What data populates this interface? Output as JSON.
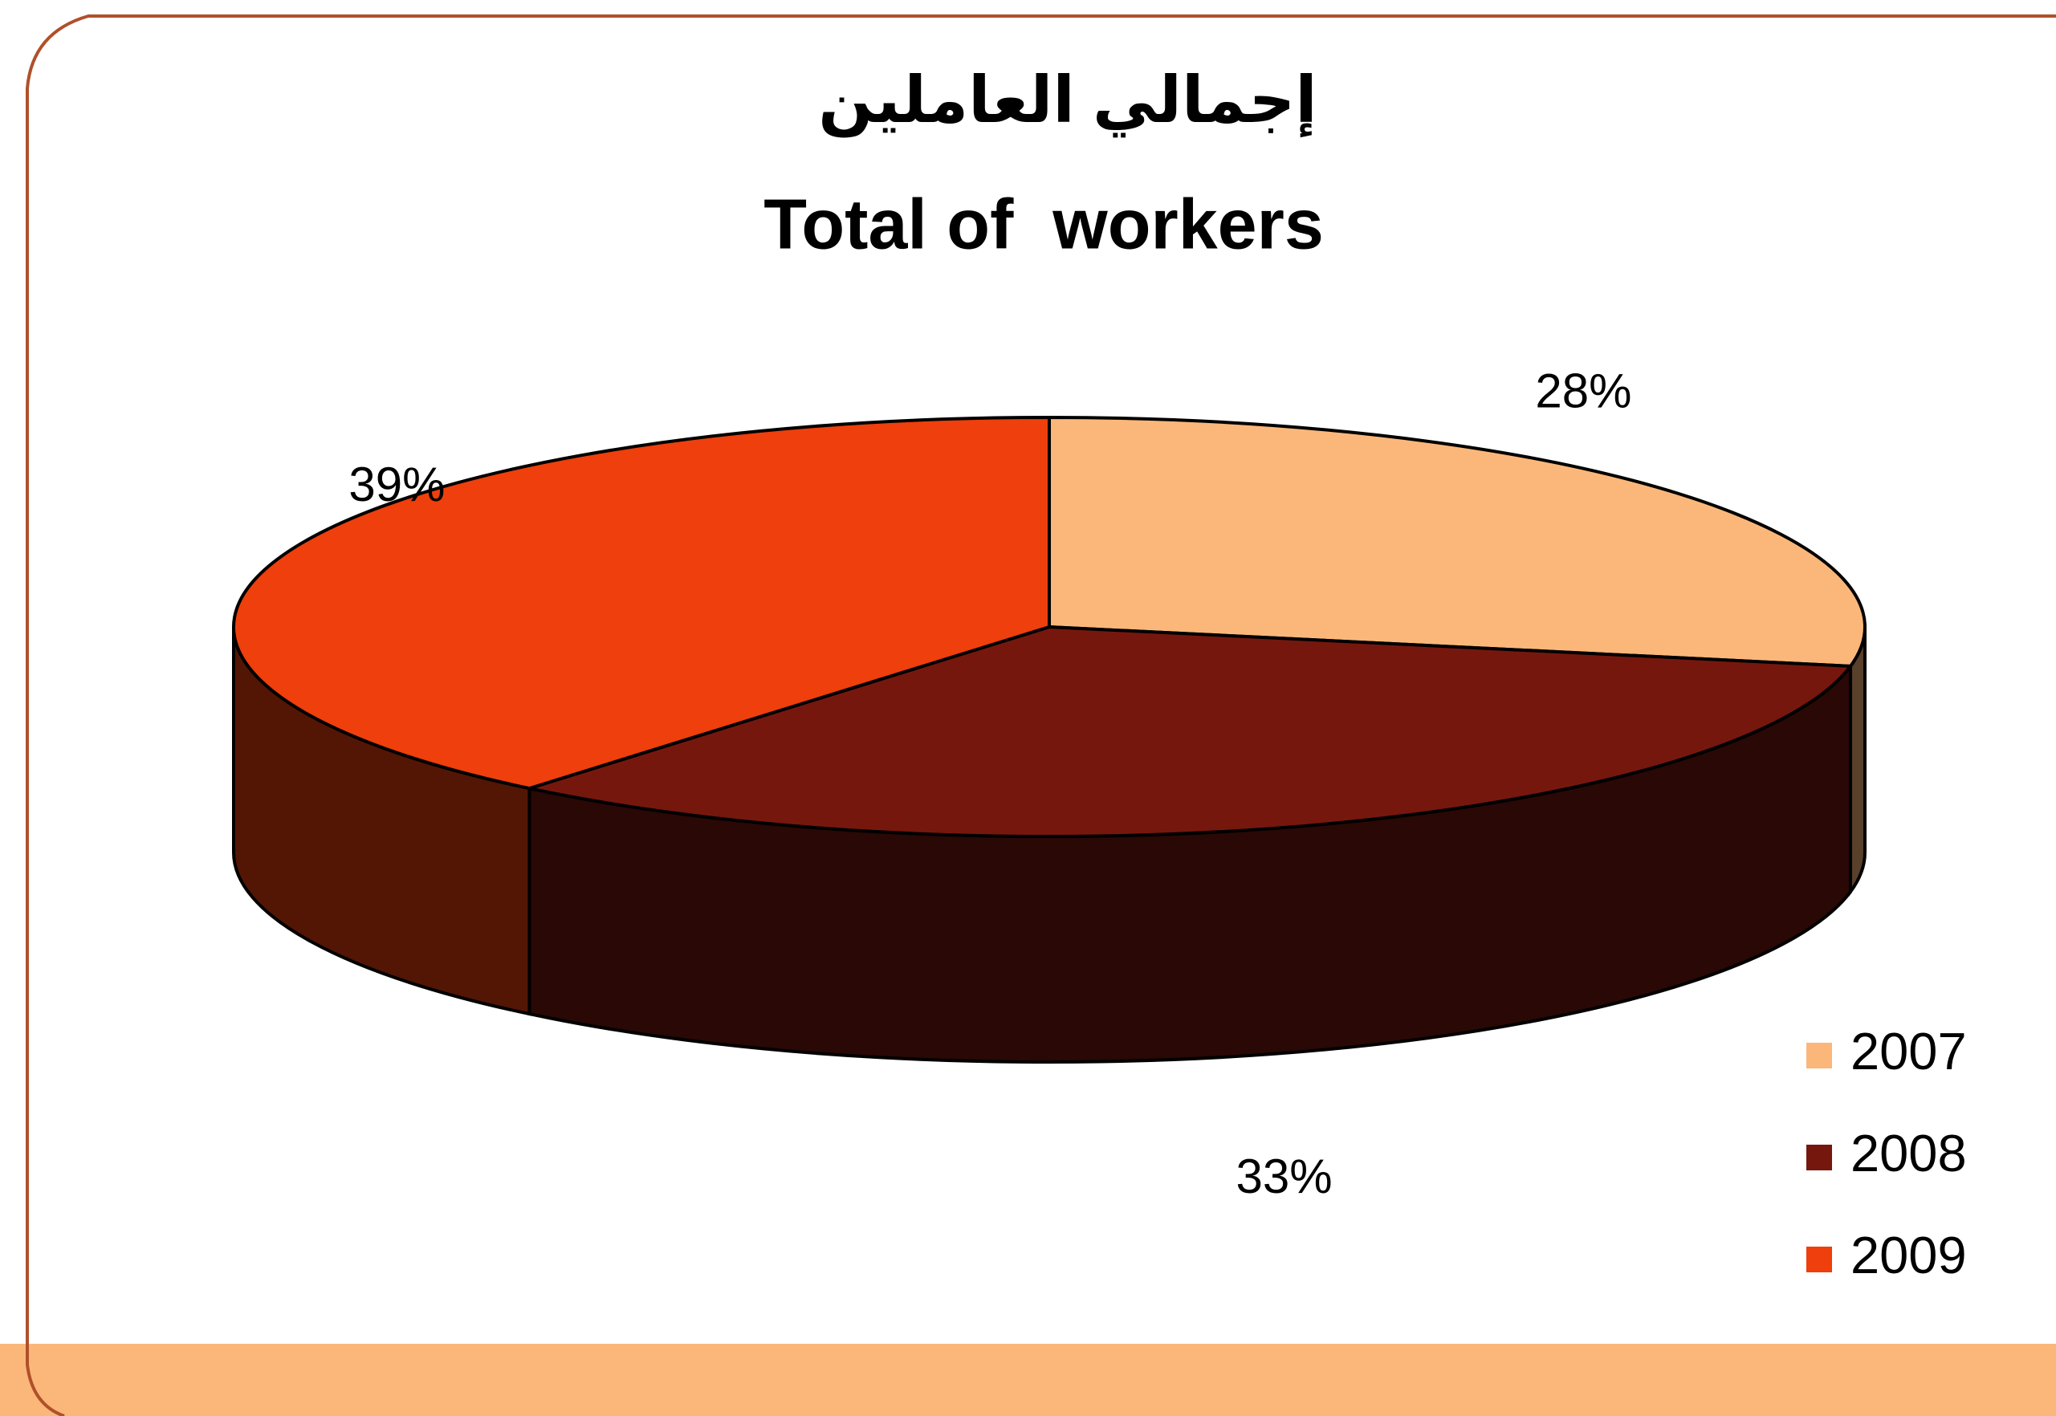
{
  "chart_data": {
    "type": "pie3d",
    "title": "إجمالي العاملين",
    "subtitle": "Total of  workers",
    "categories": [
      "2007",
      "2008",
      "2009"
    ],
    "values": [
      28,
      33,
      39
    ],
    "value_labels": [
      "28%",
      "33%",
      "39%"
    ],
    "colors": [
      "#FBB77A",
      "#76170E",
      "#EE3F0C"
    ],
    "legend": "right"
  }
}
